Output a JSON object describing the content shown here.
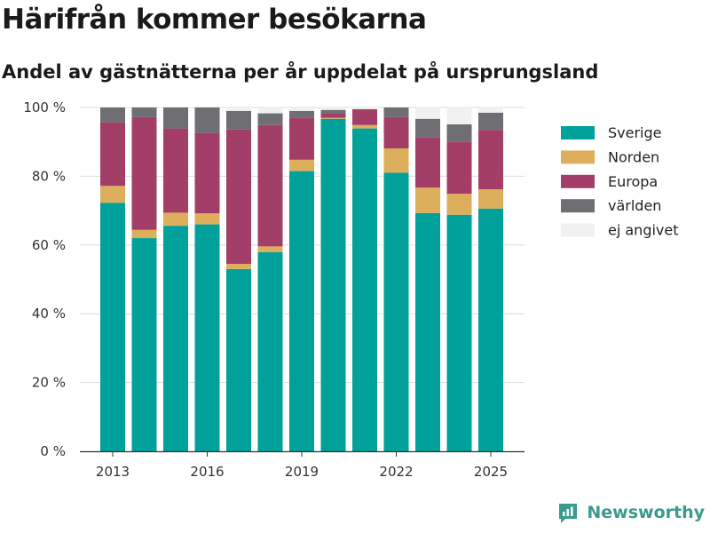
{
  "title": "Härifrån kommer besökarna",
  "subtitle": "Andel av gästnätterna per år uppdelat på ursprungsland",
  "brand": {
    "name": "Newsworthy",
    "icon": "newsworthy-logo-icon",
    "color": "#3a9a8e"
  },
  "chart_data": {
    "type": "bar",
    "stacked": true,
    "title": "Härifrån kommer besökarna",
    "subtitle": "Andel av gästnätterna per år uppdelat på ursprungsland",
    "xlabel": "",
    "ylabel": "",
    "ylim": [
      0,
      100
    ],
    "y_ticks": [
      0,
      20,
      40,
      60,
      80,
      100
    ],
    "y_tick_labels": [
      "0 %",
      "20 %",
      "40 %",
      "60 %",
      "80 %",
      "100 %"
    ],
    "x_tick_labels": [
      "2013",
      "2016",
      "2019",
      "2022",
      "2025"
    ],
    "grid": "horizontal",
    "legend_position": "right",
    "categories": [
      "2013",
      "2014",
      "2015",
      "2016",
      "2017",
      "2018",
      "2019",
      "2020",
      "2021",
      "2022",
      "2023",
      "2024",
      "2025"
    ],
    "series": [
      {
        "name": "Sverige",
        "color": "#00a19a",
        "values": [
          72.3,
          62.0,
          65.6,
          66.0,
          53.0,
          57.9,
          81.5,
          96.7,
          93.9,
          81.0,
          69.3,
          68.8,
          70.6
        ]
      },
      {
        "name": "Norden",
        "color": "#ddae5b",
        "values": [
          4.9,
          2.4,
          3.8,
          3.2,
          1.5,
          1.7,
          3.3,
          0.3,
          1.0,
          7.1,
          7.4,
          6.1,
          5.6
        ]
      },
      {
        "name": "Europa",
        "color": "#a33e68",
        "values": [
          18.5,
          32.8,
          24.5,
          23.4,
          39.1,
          35.3,
          12.2,
          1.3,
          4.6,
          9.1,
          14.6,
          15.2,
          17.3
        ]
      },
      {
        "name": "världen",
        "color": "#6e6e73",
        "values": [
          4.3,
          2.8,
          6.1,
          7.4,
          5.4,
          3.4,
          2.0,
          1.0,
          0.0,
          2.8,
          5.4,
          5.0,
          5.0
        ]
      },
      {
        "name": "ej angivet",
        "color": "#f1f1f1",
        "values": [
          0.0,
          0.0,
          0.0,
          0.0,
          1.0,
          1.7,
          1.0,
          0.7,
          0.5,
          0.0,
          3.3,
          4.9,
          1.5
        ]
      }
    ]
  }
}
